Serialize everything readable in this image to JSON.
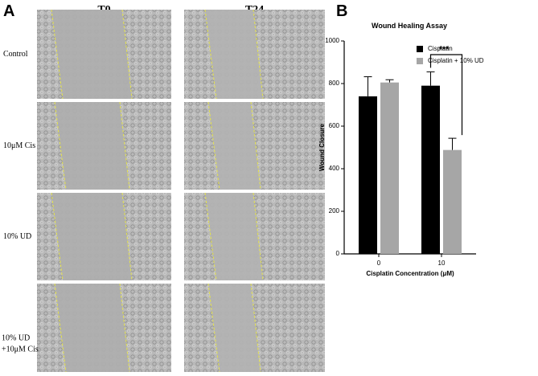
{
  "panel_a": {
    "label": "A",
    "columns": [
      "T0",
      "T24"
    ],
    "rows": [
      [
        "Control"
      ],
      [
        "10μM Cis"
      ],
      [
        "10% UD"
      ],
      [
        "10% UD",
        "+10μM Cis"
      ]
    ]
  },
  "panel_b_label": "B",
  "chart_data": {
    "type": "bar",
    "title": "Wound Healing Assay",
    "x_label": "Cisplatin Concentration (μM)",
    "y_label": "Wound Closure",
    "categories": [
      "0",
      "10"
    ],
    "series": [
      {
        "name": "Cisplatin",
        "color": "#000000",
        "values": [
          740,
          790
        ],
        "errors": [
          92,
          65
        ]
      },
      {
        "name": "Cisplatin + 10% UD",
        "color": "#a6a6a6",
        "values": [
          805,
          488
        ],
        "errors": [
          13,
          55
        ]
      }
    ],
    "ylim": [
      0,
      1000
    ],
    "yticks": [
      0,
      200,
      400,
      600,
      800,
      1000
    ],
    "legend": "upper right",
    "annotation": "***"
  }
}
